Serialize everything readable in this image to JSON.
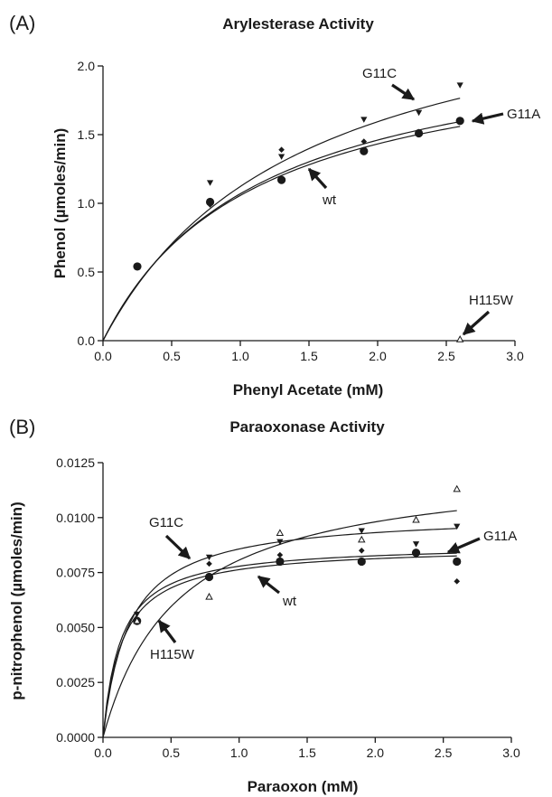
{
  "chart_data": [
    {
      "panel": "(A)",
      "type": "scatter",
      "title": "Arylesterase Activity",
      "xlabel": "Phenyl Acetate (mM)",
      "ylabel": "Phenol (µmoles/min)",
      "xlim": [
        0,
        3.0
      ],
      "ylim": [
        0,
        2.0
      ],
      "xticks": [
        "0.0",
        "0.5",
        "1.0",
        "1.5",
        "2.0",
        "2.5",
        "3.0"
      ],
      "yticks": [
        "0.0",
        "0.5",
        "1.0",
        "1.5",
        "2.0"
      ],
      "grid": false,
      "series": [
        {
          "name": "wt",
          "marker": "diamond",
          "x": [
            0.25,
            0.78,
            1.3,
            1.9,
            2.3,
            2.6
          ],
          "y": [
            0.54,
            0.99,
            1.39,
            1.45,
            1.52,
            1.6
          ],
          "fit": {
            "vmax": 2.3,
            "km": 1.15
          }
        },
        {
          "name": "G11A",
          "marker": "circle",
          "x": [
            0.25,
            0.78,
            1.3,
            1.9,
            2.3,
            2.6
          ],
          "y": [
            0.54,
            1.01,
            1.17,
            1.38,
            1.51,
            1.6
          ],
          "fit": {
            "vmax": 2.22,
            "km": 1.1
          }
        },
        {
          "name": "G11C",
          "marker": "triangle-down",
          "x": [
            0.25,
            0.78,
            1.3,
            1.9,
            2.3,
            2.6
          ],
          "y": [
            0.54,
            1.15,
            1.34,
            1.61,
            1.66,
            1.86
          ],
          "fit": {
            "vmax": 2.75,
            "km": 1.45
          }
        },
        {
          "name": "H115W",
          "marker": "triangle-open",
          "x": [
            2.6
          ],
          "y": [
            0.01
          ]
        }
      ],
      "annotations": [
        {
          "text": "G11C",
          "target_series": "G11C"
        },
        {
          "text": "G11A",
          "target_series": "G11A"
        },
        {
          "text": "wt",
          "target_series": "wt"
        },
        {
          "text": "H115W",
          "target_series": "H115W"
        }
      ]
    },
    {
      "panel": "(B)",
      "type": "scatter",
      "title": "Paraoxonase Activity",
      "xlabel": "Paraoxon (mM)",
      "ylabel": "p-nitrophenol (µmoles/min)",
      "xlim": [
        0,
        3.0
      ],
      "ylim": [
        0,
        0.0125
      ],
      "xticks": [
        "0.0",
        "0.5",
        "1.0",
        "1.5",
        "2.0",
        "2.5",
        "3.0"
      ],
      "yticks": [
        "0.0000",
        "0.0025",
        "0.0050",
        "0.0075",
        "0.0100",
        "0.0125"
      ],
      "grid": false,
      "series": [
        {
          "name": "wt",
          "marker": "diamond",
          "x": [
            0.25,
            0.78,
            1.3,
            1.9,
            2.3,
            2.6
          ],
          "y": [
            0.0053,
            0.0079,
            0.0083,
            0.0085,
            0.0083,
            0.0071
          ],
          "fit": {
            "vmax": 0.0088,
            "km": 0.13
          }
        },
        {
          "name": "G11A",
          "marker": "circle",
          "x": [
            0.25,
            0.78,
            1.3,
            1.9,
            2.3,
            2.6
          ],
          "y": [
            0.0053,
            0.0073,
            0.008,
            0.008,
            0.0084,
            0.008
          ],
          "fit": {
            "vmax": 0.0087,
            "km": 0.14
          }
        },
        {
          "name": "G11C",
          "marker": "triangle-down",
          "x": [
            0.25,
            0.78,
            1.3,
            1.9,
            2.3,
            2.6
          ],
          "y": [
            0.0056,
            0.0082,
            0.0089,
            0.0094,
            0.0088,
            0.0096
          ],
          "fit": {
            "vmax": 0.0102,
            "km": 0.19
          }
        },
        {
          "name": "H115W",
          "marker": "triangle-open",
          "x": [
            0.25,
            0.78,
            1.3,
            1.9,
            2.3,
            2.6
          ],
          "y": [
            0.0053,
            0.0064,
            0.0093,
            0.009,
            0.0099,
            0.0113
          ],
          "fit": {
            "vmax": 0.0125,
            "km": 0.55
          }
        }
      ],
      "annotations": [
        {
          "text": "G11C",
          "target_series": "G11C"
        },
        {
          "text": "G11A",
          "target_series": "G11A"
        },
        {
          "text": "wt",
          "target_series": "wt"
        },
        {
          "text": "H115W",
          "target_series": "H115W"
        }
      ]
    }
  ]
}
